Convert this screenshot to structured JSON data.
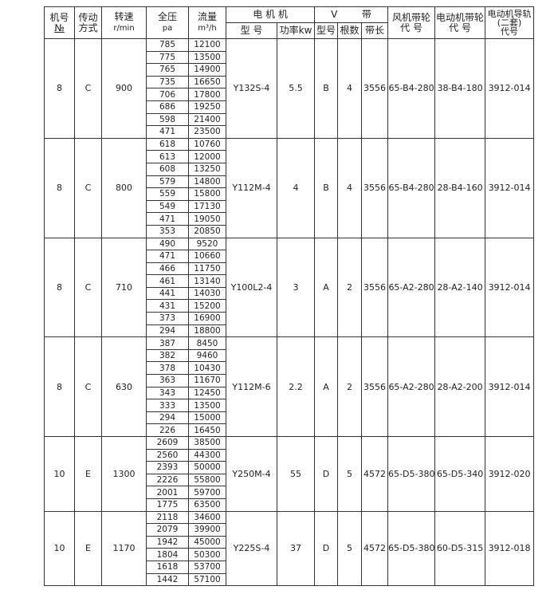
{
  "header": {
    "no_top": "机号",
    "no_bottom": "№",
    "drive_top": "传动",
    "drive_bottom": "方式",
    "speed_top": "转速",
    "speed_bottom": "r/min",
    "pressure_top": "全压",
    "pressure_bottom": "pa",
    "flow_top": "流量",
    "flow_bottom": "m³/h",
    "motor": "电 机 机",
    "motor_model": "型 号",
    "motor_power": "功率kw",
    "vbelt": "V        带",
    "belt_model": "型号",
    "belt_count": "根数",
    "belt_length": "带长",
    "fan_pulley_top": "风机带轮",
    "fan_pulley_bottom": "代 号",
    "motor_pulley_top": "电动机带轮",
    "motor_pulley_bottom": "代 号",
    "rail_top": "电动机导轨",
    "rail_mid": "(二套)",
    "rail_bottom": "代号"
  },
  "groups": [
    {
      "no": "8",
      "drive": "C",
      "speed": "900",
      "model": "Y132S-4",
      "power": "5.5",
      "belt_model": "B",
      "belt_count": "4",
      "belt_length": "3556",
      "fan_pulley": "65-B4-280",
      "motor_pulley": "38-B4-180",
      "rail": "3912-014",
      "pressure": [
        "785",
        "775",
        "765",
        "735",
        "706",
        "686",
        "598",
        "471"
      ],
      "flow": [
        "12100",
        "13500",
        "14900",
        "16650",
        "17800",
        "19250",
        "21400",
        "23500"
      ]
    },
    {
      "no": "8",
      "drive": "C",
      "speed": "800",
      "model": "Y112M-4",
      "power": "4",
      "belt_model": "B",
      "belt_count": "4",
      "belt_length": "3556",
      "fan_pulley": "65-B4-280",
      "motor_pulley": "28-B4-160",
      "rail": "3912-014",
      "pressure": [
        "618",
        "613",
        "608",
        "579",
        "559",
        "549",
        "471",
        "353"
      ],
      "flow": [
        "10760",
        "12000",
        "13250",
        "14800",
        "15800",
        "17130",
        "19050",
        "20850"
      ]
    },
    {
      "no": "8",
      "drive": "C",
      "speed": "710",
      "model": "Y100L2-4",
      "power": "3",
      "belt_model": "A",
      "belt_count": "2",
      "belt_length": "3556",
      "fan_pulley": "65-A2-280",
      "motor_pulley": "28-A2-140",
      "rail": "3912-014",
      "pressure": [
        "490",
        "471",
        "466",
        "461",
        "441",
        "431",
        "373",
        "294"
      ],
      "flow": [
        "9520",
        "10660",
        "11750",
        "13140",
        "14030",
        "15200",
        "16900",
        "18800"
      ]
    },
    {
      "no": "8",
      "drive": "C",
      "speed": "630",
      "model": "Y112M-6",
      "power": "2.2",
      "belt_model": "A",
      "belt_count": "2",
      "belt_length": "3556",
      "fan_pulley": "65-A2-280",
      "motor_pulley": "28-A2-200",
      "rail": "3912-014",
      "pressure": [
        "387",
        "382",
        "378",
        "363",
        "343",
        "333",
        "294",
        "226"
      ],
      "flow": [
        "8450",
        "9460",
        "10430",
        "11670",
        "12450",
        "13500",
        "15000",
        "16450"
      ]
    },
    {
      "no": "10",
      "drive": "E",
      "speed": "1300",
      "model": "Y250M-4",
      "power": "55",
      "belt_model": "D",
      "belt_count": "5",
      "belt_length": "4572",
      "fan_pulley": "65-D5-380",
      "motor_pulley": "65-D5-340",
      "rail": "3912-020",
      "pressure": [
        "2609",
        "2560",
        "2393",
        "2226",
        "2001",
        "1775"
      ],
      "flow": [
        "38500",
        "44300",
        "50000",
        "55800",
        "59700",
        "63500"
      ]
    },
    {
      "no": "10",
      "drive": "E",
      "speed": "1170",
      "model": "Y225S-4",
      "power": "37",
      "belt_model": "D",
      "belt_count": "5",
      "belt_length": "4572",
      "fan_pulley": "65-D5-380",
      "motor_pulley": "60-D5-315",
      "rail": "3912-018",
      "pressure": [
        "2118",
        "2079",
        "1942",
        "1804",
        "1618",
        "1442"
      ],
      "flow": [
        "34600",
        "39900",
        "45000",
        "50300",
        "53700",
        "57100"
      ]
    }
  ]
}
